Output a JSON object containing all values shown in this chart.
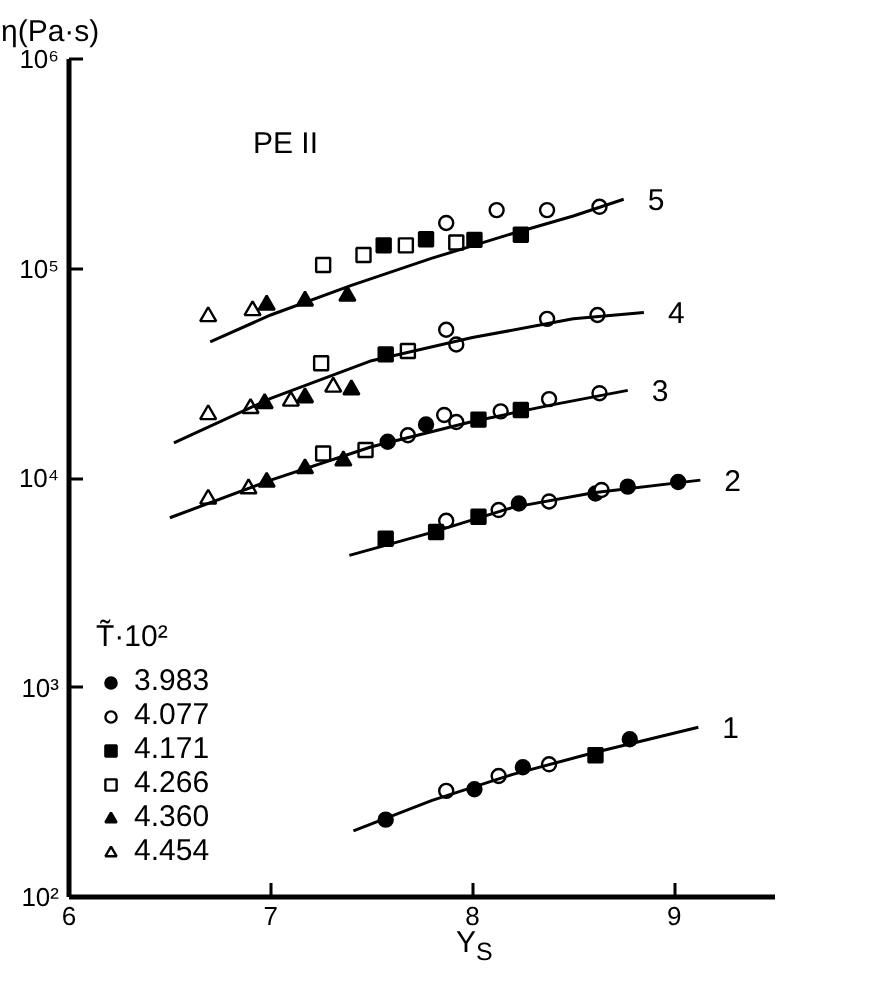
{
  "chart_data": {
    "type": "scatter",
    "title": "PE II",
    "xlabel": "Y$_{S}$",
    "ylabel": "η(Pa·s)",
    "legend_title": "T̃·10²",
    "log": "y",
    "grid": false,
    "legend": "bottom left",
    "xlim": [
      6,
      9.5
    ],
    "xticks": [
      6,
      7,
      8,
      9
    ],
    "ylim": [
      100,
      1000000
    ],
    "yticks": [
      {
        "value": 100,
        "label": "10²"
      },
      {
        "value": 1000,
        "label": "10³"
      },
      {
        "value": 10000,
        "label": "10⁴"
      },
      {
        "value": 100000,
        "label": "10⁵"
      },
      {
        "value": 1000000,
        "label": "10⁶"
      }
    ],
    "series": [
      {
        "name": "3.983",
        "color": "#000000",
        "marker": "circle",
        "x": [
          7.58,
          7.77,
          8.23,
          8.61,
          8.77,
          9.02,
          7.57,
          8.01,
          8.25,
          8.78
        ],
        "values": [
          14900,
          18000,
          7550,
          8430,
          9100,
          9570,
          234,
          327,
          416,
          566
        ]
      },
      {
        "name": "4.077",
        "color": "#000000",
        "marker": "circle_open",
        "x": [
          7.87,
          8.12,
          8.37,
          8.63,
          7.87,
          8.37,
          8.62,
          7.92,
          7.68,
          7.86,
          7.92,
          8.14,
          8.38,
          8.63,
          7.87,
          8.13,
          8.38,
          8.64,
          7.87,
          8.13,
          8.38
        ],
        "values": [
          165000,
          190000,
          190000,
          197000,
          51000,
          57500,
          60000,
          43400,
          16000,
          20000,
          18500,
          20800,
          23800,
          25400,
          6250,
          7030,
          7730,
          8770,
          321,
          378,
          430
        ]
      },
      {
        "name": "4.171",
        "color": "#000000",
        "marker": "square",
        "x": [
          7.56,
          7.77,
          8.01,
          8.24,
          7.57,
          8.03,
          8.24,
          7.57,
          7.82,
          8.03,
          8.61
        ],
        "values": [
          129000,
          138000,
          137000,
          145000,
          38900,
          19000,
          21100,
          5130,
          5520,
          6530,
          475
        ]
      },
      {
        "name": "4.266",
        "color": "#000000",
        "marker": "square_open",
        "x": [
          7.26,
          7.46,
          7.67,
          7.92,
          7.25,
          7.68,
          7.26,
          7.47
        ],
        "values": [
          104000,
          116000,
          129000,
          133000,
          35300,
          40400,
          13100,
          13600
        ]
      },
      {
        "name": "4.360",
        "color": "#000000",
        "marker": "triangle",
        "x": [
          6.98,
          7.17,
          7.38,
          6.97,
          7.17,
          7.4,
          6.98,
          7.17,
          7.36
        ],
        "values": [
          67000,
          70000,
          74000,
          22700,
          24200,
          26400,
          9570,
          11100,
          12100
        ]
      },
      {
        "name": "4.454",
        "color": "#000000",
        "marker": "triangle_open",
        "x": [
          6.69,
          6.91,
          6.69,
          6.9,
          7.1,
          7.31,
          6.69,
          6.89
        ],
        "values": [
          59000,
          63000,
          20100,
          21500,
          23300,
          27200,
          7940,
          8890
        ]
      },
      {
        "name": "5",
        "type": "line",
        "color": "#000000",
        "line_style": "solid",
        "x": [
          6.7,
          7.0,
          7.4,
          7.8,
          8.2,
          8.5,
          8.75
        ],
        "values": [
          44700,
          60000,
          83000,
          112000,
          147000,
          178000,
          214000
        ]
      },
      {
        "name": "4",
        "type": "line",
        "color": "#000000",
        "line_style": "solid",
        "x": [
          6.52,
          7.0,
          7.5,
          8.0,
          8.5,
          8.85
        ],
        "values": [
          14700,
          24000,
          36300,
          46800,
          57500,
          61700
        ]
      },
      {
        "name": "3",
        "type": "line",
        "color": "#000000",
        "line_style": "solid",
        "x": [
          6.5,
          7.0,
          7.5,
          8.0,
          8.4,
          8.77
        ],
        "values": [
          6460,
          9770,
          14100,
          18600,
          22400,
          26200
        ]
      },
      {
        "name": "2",
        "type": "line",
        "color": "#000000",
        "line_style": "solid",
        "x": [
          7.39,
          7.8,
          8.2,
          8.6,
          9.13
        ],
        "values": [
          4270,
          5500,
          7240,
          8510,
          9770
        ]
      },
      {
        "name": "1",
        "type": "line",
        "color": "#000000",
        "line_style": "solid",
        "x": [
          7.41,
          7.8,
          8.2,
          8.6,
          9.12
        ],
        "values": [
          207,
          289,
          385,
          488,
          646
        ]
      }
    ]
  }
}
